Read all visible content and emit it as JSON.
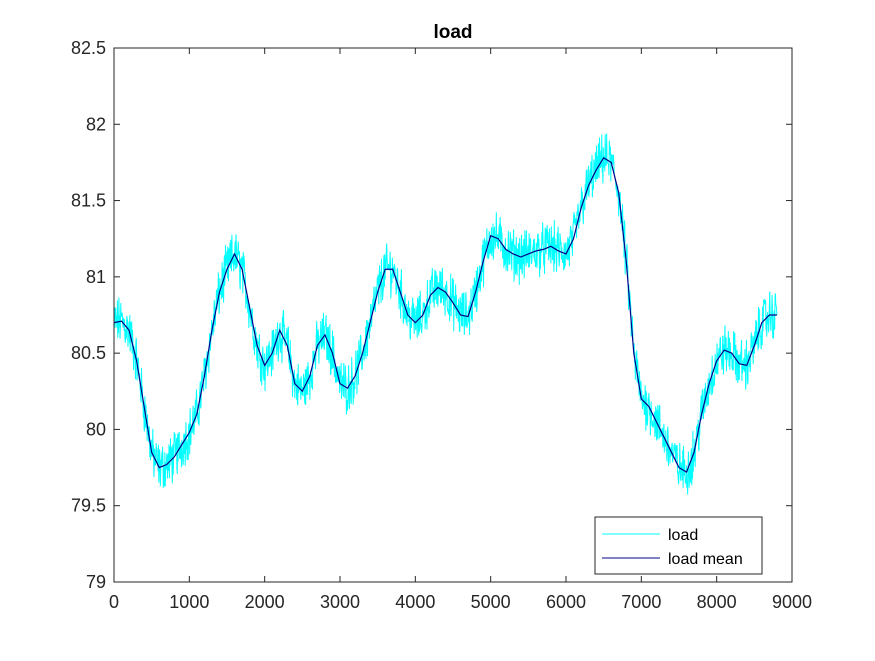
{
  "chart_data": {
    "type": "line",
    "title": "load",
    "xlabel": "",
    "ylabel": "",
    "xlim": [
      0,
      9000
    ],
    "ylim": [
      79,
      82.5
    ],
    "xticks": [
      0,
      1000,
      2000,
      3000,
      4000,
      5000,
      6000,
      7000,
      8000,
      9000
    ],
    "xtick_labels": [
      "0",
      "1000",
      "2000",
      "3000",
      "4000",
      "5000",
      "6000",
      "7000",
      "8000",
      "9000"
    ],
    "yticks": [
      79,
      79.5,
      80,
      80.5,
      81,
      81.5,
      82,
      82.5
    ],
    "ytick_labels": [
      "79",
      "79.5",
      "80",
      "80.5",
      "81",
      "81.5",
      "82",
      "82.5"
    ],
    "grid": false,
    "legend_position": "bottom-right",
    "series": [
      {
        "name": "load",
        "color": "#00FFFF",
        "style": "noisy raw signal around the mean curve",
        "noise_amplitude": 0.13,
        "x": [
          0,
          100,
          200,
          300,
          400,
          500,
          600,
          700,
          800,
          900,
          1000,
          1100,
          1200,
          1300,
          1400,
          1500,
          1600,
          1700,
          1800,
          1900,
          2000,
          2100,
          2200,
          2300,
          2400,
          2500,
          2600,
          2700,
          2800,
          2900,
          3000,
          3100,
          3200,
          3300,
          3400,
          3500,
          3600,
          3700,
          3800,
          3900,
          4000,
          4100,
          4200,
          4300,
          4400,
          4500,
          4600,
          4700,
          4800,
          4900,
          5000,
          5100,
          5200,
          5300,
          5400,
          5500,
          5600,
          5700,
          5800,
          5900,
          6000,
          6100,
          6200,
          6300,
          6400,
          6500,
          6600,
          6700,
          6800,
          6900,
          7000,
          7100,
          7200,
          7300,
          7400,
          7500,
          7600,
          7700,
          7800,
          7900,
          8000,
          8100,
          8200,
          8300,
          8400,
          8500,
          8600,
          8700,
          8800
        ],
        "y": [
          80.7,
          80.71,
          80.65,
          80.45,
          80.15,
          79.85,
          79.75,
          79.77,
          79.82,
          79.9,
          79.98,
          80.1,
          80.35,
          80.65,
          80.9,
          81.05,
          81.15,
          81.05,
          80.8,
          80.55,
          80.42,
          80.5,
          80.65,
          80.55,
          80.3,
          80.25,
          80.35,
          80.55,
          80.62,
          80.5,
          80.3,
          80.27,
          80.35,
          80.5,
          80.7,
          80.9,
          81.05,
          81.05,
          80.9,
          80.75,
          80.7,
          80.75,
          80.88,
          80.93,
          80.9,
          80.83,
          80.75,
          80.74,
          80.9,
          81.1,
          81.27,
          81.25,
          81.18,
          81.15,
          81.13,
          81.15,
          81.17,
          81.18,
          81.2,
          81.17,
          81.15,
          81.25,
          81.45,
          81.6,
          81.7,
          81.78,
          81.75,
          81.55,
          81.1,
          80.5,
          80.2,
          80.15,
          80.05,
          79.95,
          79.85,
          79.75,
          79.72,
          79.85,
          80.1,
          80.3,
          80.45,
          80.52,
          80.5,
          80.43,
          80.42,
          80.55,
          80.7,
          80.75,
          80.75
        ]
      },
      {
        "name": "load mean",
        "color": "#00008B",
        "x": [
          0,
          100,
          200,
          300,
          400,
          500,
          600,
          700,
          800,
          900,
          1000,
          1100,
          1200,
          1300,
          1400,
          1500,
          1600,
          1700,
          1800,
          1900,
          2000,
          2100,
          2200,
          2300,
          2400,
          2500,
          2600,
          2700,
          2800,
          2900,
          3000,
          3100,
          3200,
          3300,
          3400,
          3500,
          3600,
          3700,
          3800,
          3900,
          4000,
          4100,
          4200,
          4300,
          4400,
          4500,
          4600,
          4700,
          4800,
          4900,
          5000,
          5100,
          5200,
          5300,
          5400,
          5500,
          5600,
          5700,
          5800,
          5900,
          6000,
          6100,
          6200,
          6300,
          6400,
          6500,
          6600,
          6700,
          6800,
          6900,
          7000,
          7100,
          7200,
          7300,
          7400,
          7500,
          7600,
          7700,
          7800,
          7900,
          8000,
          8100,
          8200,
          8300,
          8400,
          8500,
          8600,
          8700,
          8800
        ],
        "y": [
          80.7,
          80.71,
          80.65,
          80.45,
          80.15,
          79.85,
          79.75,
          79.77,
          79.82,
          79.9,
          79.98,
          80.1,
          80.35,
          80.65,
          80.9,
          81.05,
          81.15,
          81.05,
          80.8,
          80.55,
          80.42,
          80.5,
          80.65,
          80.55,
          80.3,
          80.25,
          80.35,
          80.55,
          80.62,
          80.5,
          80.3,
          80.27,
          80.35,
          80.5,
          80.7,
          80.9,
          81.05,
          81.05,
          80.9,
          80.75,
          80.7,
          80.75,
          80.88,
          80.93,
          80.9,
          80.83,
          80.75,
          80.74,
          80.9,
          81.1,
          81.27,
          81.25,
          81.18,
          81.15,
          81.13,
          81.15,
          81.17,
          81.18,
          81.2,
          81.17,
          81.15,
          81.25,
          81.45,
          81.6,
          81.7,
          81.78,
          81.75,
          81.55,
          81.1,
          80.5,
          80.2,
          80.15,
          80.05,
          79.95,
          79.85,
          79.75,
          79.72,
          79.85,
          80.1,
          80.3,
          80.45,
          80.52,
          80.5,
          80.43,
          80.42,
          80.55,
          80.7,
          80.75,
          80.75
        ]
      }
    ]
  }
}
